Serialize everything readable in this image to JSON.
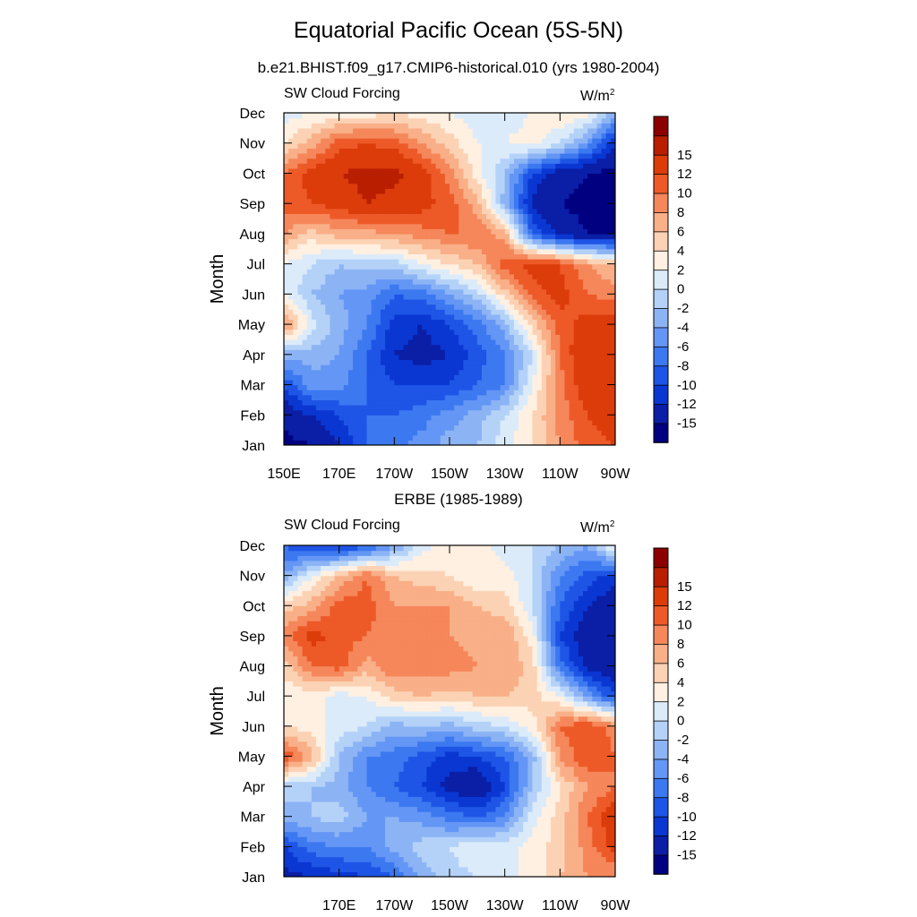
{
  "header": {
    "title": "Equatorial Pacific Ocean (5S-5N)",
    "subtitle_top": "b.e21.BHIST.f09_g17.CMIP6-historical.010 (yrs 1980-2004)",
    "subtitle_bottom": "ERBE (1985-1989)"
  },
  "colors": [
    "#000080",
    "#0a1ea6",
    "#0a37d2",
    "#1e55e6",
    "#3c78f0",
    "#6496f5",
    "#8cb4f5",
    "#b4d2f8",
    "#dcebfa",
    "#fff0e1",
    "#fcd2b4",
    "#f9af87",
    "#f5875a",
    "#ed5a28",
    "#dc3c0a",
    "#b91e00",
    "#8c0000"
  ],
  "colorbar": {
    "labels": [
      "-15",
      "-12",
      "-10",
      "-8",
      "-6",
      "-4",
      "-2",
      "0",
      "2",
      "4",
      "6",
      "8",
      "10",
      "12",
      "15"
    ]
  },
  "chart_data": [
    {
      "type": "heatmap",
      "panel": "model",
      "left_label": "SW Cloud Forcing",
      "units_base": "W/m",
      "units_exp": "2",
      "ylabel": "Month",
      "y_ticks": [
        "Jan",
        "Feb",
        "Mar",
        "Apr",
        "May",
        "Jun",
        "Jul",
        "Aug",
        "Sep",
        "Oct",
        "Nov",
        "Dec"
      ],
      "x_ticks": [
        {
          "lon": 150,
          "label": "150E"
        },
        {
          "lon": 170,
          "label": "170E"
        },
        {
          "lon": 190,
          "label": "170W"
        },
        {
          "lon": 210,
          "label": "150W"
        },
        {
          "lon": 230,
          "label": "130W"
        },
        {
          "lon": 250,
          "label": "110W"
        },
        {
          "lon": 270,
          "label": "90W"
        }
      ],
      "xlim": [
        150,
        270
      ],
      "x": [
        150,
        160,
        170,
        180,
        190,
        200,
        210,
        220,
        230,
        240,
        250,
        260,
        270
      ],
      "months": [
        "Jan",
        "Feb",
        "Mar",
        "Apr",
        "May",
        "Jun",
        "Jul",
        "Aug",
        "Sep",
        "Oct",
        "Nov",
        "Dec"
      ],
      "levels": [
        -15,
        -12,
        -10,
        -8,
        -6,
        -4,
        -2,
        0,
        2,
        4,
        6,
        8,
        10,
        12,
        15
      ],
      "z": [
        [
          -16,
          -15,
          -12,
          -8,
          -7,
          -5,
          -3,
          -2,
          1,
          4,
          8,
          11,
          12
        ],
        [
          -14,
          -12,
          -10,
          -8,
          -8,
          -7,
          -5,
          -3,
          0,
          4,
          9,
          12,
          13
        ],
        [
          -10,
          -5,
          -5,
          -8,
          -10,
          -10,
          -10,
          -8,
          -6,
          2,
          9,
          14,
          14
        ],
        [
          -3,
          -3,
          -4,
          -8,
          -12,
          -13,
          -12,
          -9,
          -6,
          0,
          10,
          15,
          15
        ],
        [
          9,
          1,
          -3,
          -6,
          -11,
          -12,
          -10,
          -7,
          -3,
          5,
          11,
          13,
          14
        ],
        [
          2,
          -2,
          -4,
          -5,
          -8,
          -7,
          -4,
          -1,
          5,
          11,
          13,
          10,
          9
        ],
        [
          2,
          0,
          -2,
          -1,
          -1,
          2,
          4,
          6,
          11,
          13,
          12,
          8,
          6
        ],
        [
          8,
          5,
          7,
          7,
          8,
          9,
          10,
          10,
          7,
          -8,
          -13,
          -15,
          -15
        ],
        [
          11,
          12,
          13,
          15,
          14,
          13,
          11,
          7,
          -3,
          -13,
          -15,
          -16,
          -16
        ],
        [
          10,
          13,
          15,
          16,
          16,
          13,
          9,
          3,
          -2,
          -10,
          -14,
          -15,
          -16
        ],
        [
          4,
          7,
          11,
          12,
          11,
          8,
          5,
          2,
          2,
          3,
          0,
          -5,
          -12
        ],
        [
          1,
          2,
          3,
          3,
          4,
          3,
          2,
          1,
          1,
          2,
          4,
          3,
          -3
        ]
      ]
    },
    {
      "type": "heatmap",
      "panel": "observations",
      "left_label": "SW Cloud Forcing",
      "units_base": "W/m",
      "units_exp": "2",
      "ylabel": "Month",
      "y_ticks": [
        "Jan",
        "Feb",
        "Mar",
        "Apr",
        "May",
        "Jun",
        "Jul",
        "Aug",
        "Sep",
        "Oct",
        "Nov",
        "Dec"
      ],
      "x_ticks": [
        {
          "lon": 170,
          "label": "170E"
        },
        {
          "lon": 190,
          "label": "170W"
        },
        {
          "lon": 210,
          "label": "150W"
        },
        {
          "lon": 230,
          "label": "130W"
        },
        {
          "lon": 250,
          "label": "110W"
        },
        {
          "lon": 270,
          "label": "90W"
        }
      ],
      "xlim": [
        150,
        270
      ],
      "x": [
        150,
        160,
        170,
        180,
        190,
        200,
        210,
        220,
        230,
        240,
        250,
        260,
        270
      ],
      "months": [
        "Jan",
        "Feb",
        "Mar",
        "Apr",
        "May",
        "Jun",
        "Jul",
        "Aug",
        "Sep",
        "Oct",
        "Nov",
        "Dec"
      ],
      "levels": [
        -15,
        -12,
        -10,
        -8,
        -6,
        -4,
        -2,
        0,
        2,
        4,
        6,
        8,
        10,
        12,
        15
      ],
      "z": [
        [
          -13,
          -12,
          -11,
          -10,
          -8,
          -3,
          -1,
          0,
          2,
          2,
          6,
          8,
          8
        ],
        [
          -10,
          -7,
          -6,
          -6,
          -3,
          -1,
          0,
          2,
          1,
          3,
          5,
          9,
          13
        ],
        [
          -3,
          -2,
          -1,
          -4,
          -4,
          -5,
          -7,
          -8,
          -6,
          1,
          5,
          10,
          14
        ],
        [
          -1,
          -2,
          -3,
          -6,
          -8,
          -10,
          -13,
          -15,
          -10,
          -2,
          4,
          8,
          10
        ],
        [
          12,
          7,
          -2,
          -6,
          -7,
          -9,
          -11,
          -10,
          -8,
          -3,
          8,
          12,
          10
        ],
        [
          4,
          3,
          1,
          0,
          -3,
          -2,
          -3,
          -1,
          0,
          3,
          10,
          12,
          9
        ],
        [
          2,
          3,
          1,
          2,
          5,
          6,
          5,
          6,
          6,
          5,
          2,
          -4,
          -10
        ],
        [
          5,
          10,
          11,
          7,
          10,
          9,
          9,
          8,
          8,
          5,
          -7,
          -13,
          -14
        ],
        [
          9,
          13,
          11,
          10,
          9,
          9,
          8,
          7,
          8,
          3,
          -10,
          -14,
          -15
        ],
        [
          5,
          7,
          11,
          11,
          8,
          8,
          8,
          6,
          5,
          0,
          -8,
          -12,
          -14
        ],
        [
          -4,
          2,
          6,
          10,
          6,
          5,
          4,
          2,
          3,
          0,
          -6,
          -9,
          -11
        ],
        [
          -8,
          -11,
          -11,
          -9,
          -4,
          1,
          3,
          3,
          1,
          0,
          -2,
          -4,
          3
        ]
      ]
    }
  ]
}
